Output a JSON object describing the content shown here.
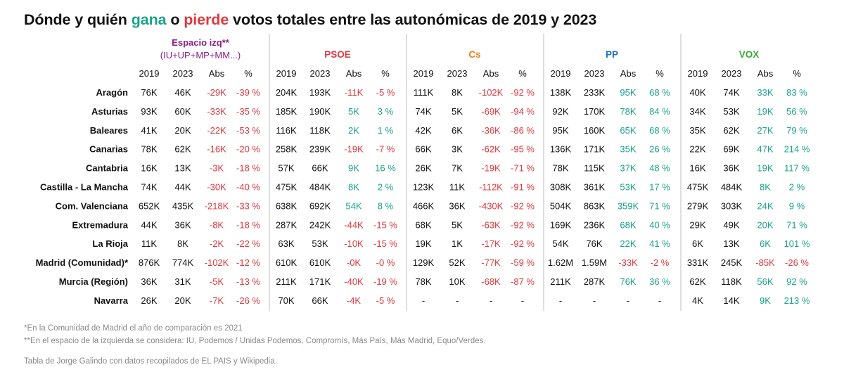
{
  "title": {
    "before_gana": "Dónde y quién ",
    "gana": "gana",
    "between": " o ",
    "pierde": "pierde",
    "after": " votos totales entre las autonómicas de 2019 y 2023"
  },
  "colors": {
    "gain": "#1aa38a",
    "loss": "#e0393e",
    "text": "#111111",
    "divider": "#bdbdbd",
    "note": "#8a8a8a"
  },
  "chart_data": {
    "type": "table",
    "columns": [
      "2019",
      "2023",
      "Abs",
      "%"
    ],
    "parties": [
      {
        "name": "Espacio izq**",
        "subtitle": "(IU+UP+MP+MM...)",
        "color": "#8a1e8a"
      },
      {
        "name": "PSOE",
        "subtitle": "",
        "color": "#e0393e"
      },
      {
        "name": "Cs",
        "subtitle": "",
        "color": "#ef7d1b"
      },
      {
        "name": "PP",
        "subtitle": "",
        "color": "#1f6fc1"
      },
      {
        "name": "VOX",
        "subtitle": "",
        "color": "#3aa935"
      }
    ],
    "regions": [
      {
        "name": "Aragón",
        "cells": [
          [
            "76K",
            "46K",
            "-29K",
            "-39 %"
          ],
          [
            "204K",
            "193K",
            "-11K",
            "-5 %"
          ],
          [
            "111K",
            "8K",
            "-102K",
            "-92 %"
          ],
          [
            "138K",
            "233K",
            "95K",
            "68 %"
          ],
          [
            "40K",
            "74K",
            "33K",
            "83 %"
          ]
        ]
      },
      {
        "name": "Asturias",
        "cells": [
          [
            "93K",
            "60K",
            "-33K",
            "-35 %"
          ],
          [
            "185K",
            "190K",
            "5K",
            "3 %"
          ],
          [
            "74K",
            "5K",
            "-69K",
            "-94 %"
          ],
          [
            "92K",
            "170K",
            "78K",
            "84 %"
          ],
          [
            "34K",
            "53K",
            "19K",
            "56 %"
          ]
        ]
      },
      {
        "name": "Baleares",
        "cells": [
          [
            "41K",
            "20K",
            "-22K",
            "-53 %"
          ],
          [
            "116K",
            "118K",
            "2K",
            "1 %"
          ],
          [
            "42K",
            "6K",
            "-36K",
            "-86 %"
          ],
          [
            "95K",
            "160K",
            "65K",
            "68 %"
          ],
          [
            "35K",
            "62K",
            "27K",
            "79 %"
          ]
        ]
      },
      {
        "name": "Canarias",
        "cells": [
          [
            "78K",
            "62K",
            "-16K",
            "-20 %"
          ],
          [
            "258K",
            "239K",
            "-19K",
            "-7 %"
          ],
          [
            "66K",
            "3K",
            "-62K",
            "-95 %"
          ],
          [
            "136K",
            "171K",
            "35K",
            "26 %"
          ],
          [
            "22K",
            "69K",
            "47K",
            "214 %"
          ]
        ]
      },
      {
        "name": "Cantabria",
        "cells": [
          [
            "16K",
            "13K",
            "-3K",
            "-18 %"
          ],
          [
            "57K",
            "66K",
            "9K",
            "16 %"
          ],
          [
            "26K",
            "7K",
            "-19K",
            "-71 %"
          ],
          [
            "78K",
            "115K",
            "37K",
            "48 %"
          ],
          [
            "16K",
            "36K",
            "19K",
            "117 %"
          ]
        ]
      },
      {
        "name": "Castilla - La Mancha",
        "cells": [
          [
            "74K",
            "44K",
            "-30K",
            "-40 %"
          ],
          [
            "475K",
            "484K",
            "8K",
            "2 %"
          ],
          [
            "123K",
            "11K",
            "-112K",
            "-91 %"
          ],
          [
            "308K",
            "361K",
            "53K",
            "17 %"
          ],
          [
            "475K",
            "484K",
            "8K",
            "2 %"
          ]
        ]
      },
      {
        "name": "Com. Valenciana",
        "cells": [
          [
            "652K",
            "435K",
            "-218K",
            "-33 %"
          ],
          [
            "638K",
            "692K",
            "54K",
            "8 %"
          ],
          [
            "466K",
            "36K",
            "-430K",
            "-92 %"
          ],
          [
            "504K",
            "863K",
            "359K",
            "71 %"
          ],
          [
            "279K",
            "303K",
            "24K",
            "9 %"
          ]
        ]
      },
      {
        "name": "Extremadura",
        "cells": [
          [
            "44K",
            "36K",
            "-8K",
            "-18 %"
          ],
          [
            "287K",
            "242K",
            "-44K",
            "-15 %"
          ],
          [
            "68K",
            "5K",
            "-63K",
            "-92 %"
          ],
          [
            "169K",
            "236K",
            "68K",
            "40 %"
          ],
          [
            "29K",
            "49K",
            "20K",
            "71 %"
          ]
        ]
      },
      {
        "name": "La Rioja",
        "cells": [
          [
            "11K",
            "8K",
            "-2K",
            "-22 %"
          ],
          [
            "63K",
            "53K",
            "-10K",
            "-15 %"
          ],
          [
            "19K",
            "1K",
            "-17K",
            "-92 %"
          ],
          [
            "54K",
            "76K",
            "22K",
            "41 %"
          ],
          [
            "6K",
            "13K",
            "6K",
            "101 %"
          ]
        ]
      },
      {
        "name": "Madrid (Comunidad)*",
        "cells": [
          [
            "876K",
            "774K",
            "-102K",
            "-12 %"
          ],
          [
            "610K",
            "610K",
            "-0K",
            "-0 %"
          ],
          [
            "129K",
            "52K",
            "-77K",
            "-59 %"
          ],
          [
            "1.62M",
            "1.59M",
            "-33K",
            "-2 %"
          ],
          [
            "331K",
            "245K",
            "-85K",
            "-26 %"
          ]
        ]
      },
      {
        "name": "Murcia (Región)",
        "cells": [
          [
            "36K",
            "31K",
            "-5K",
            "-13 %"
          ],
          [
            "211K",
            "171K",
            "-40K",
            "-19 %"
          ],
          [
            "78K",
            "10K",
            "-68K",
            "-87 %"
          ],
          [
            "211K",
            "287K",
            "76K",
            "36 %"
          ],
          [
            "62K",
            "118K",
            "56K",
            "92 %"
          ]
        ]
      },
      {
        "name": "Navarra",
        "cells": [
          [
            "26K",
            "20K",
            "-7K",
            "-26 %"
          ],
          [
            "70K",
            "66K",
            "-4K",
            "-5 %"
          ],
          [
            "-",
            "-",
            "-",
            "-"
          ],
          [
            "-",
            "-",
            "-",
            "-"
          ],
          [
            "4K",
            "14K",
            "9K",
            "213 %"
          ]
        ]
      }
    ]
  },
  "notes": [
    "*En la Comunidad de Madrid el año de comparación es 2021",
    "**En el espacio de la izquierda se considera: IU, Podemos / Unidas Podemos, Compromís, Más País, Más Madrid, Equo/Verdes."
  ],
  "credit": "Tabla de Jorge Galindo con datos recopilados de EL PAIS y Wikipedia."
}
